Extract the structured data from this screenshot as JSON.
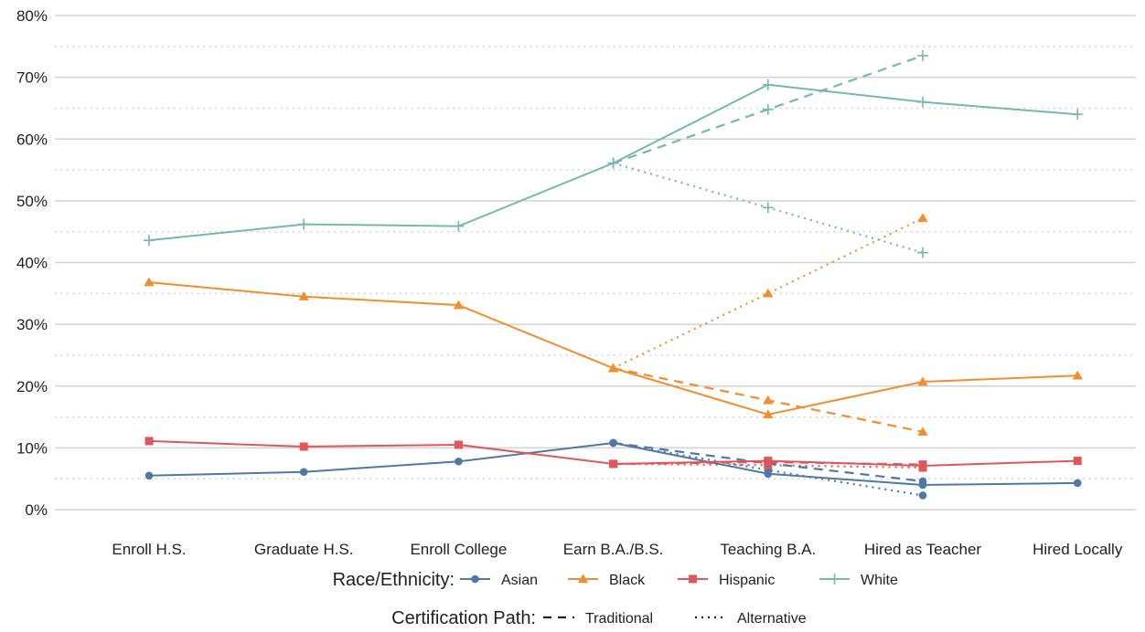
{
  "chart_data": {
    "type": "line",
    "categories": [
      "Enroll H.S.",
      "Graduate H.S.",
      "Enroll College",
      "Earn B.A./B.S.",
      "Teaching B.A.",
      "Hired as Teacher",
      "Hired Locally"
    ],
    "y_ticks": [
      "0%",
      "10%",
      "20%",
      "30%",
      "40%",
      "50%",
      "60%",
      "70%",
      "80%"
    ],
    "ylim": [
      0,
      80
    ],
    "grid": "major solid, minor dotted",
    "legend_placement": "bottom",
    "legend": {
      "race_title": "Race/Ethnicity:",
      "race_items": [
        {
          "label": "Asian",
          "color": "#4e79a7",
          "marker": "circle"
        },
        {
          "label": "Black",
          "color": "#f28e2b",
          "marker": "triangle"
        },
        {
          "label": "Hispanic",
          "color": "#e15759",
          "marker": "square"
        },
        {
          "label": "White",
          "color": "#76b7b2",
          "marker": "plus"
        }
      ],
      "path_title": "Certification Path:",
      "path_items": [
        {
          "label": "Traditional",
          "dash": "dashed"
        },
        {
          "label": "Alternative",
          "dash": "dotted"
        }
      ]
    },
    "series": [
      {
        "name": "Asian",
        "path": "Overall",
        "values": [
          5.5,
          6.1,
          7.8,
          10.8,
          5.8,
          4.0,
          4.3
        ]
      },
      {
        "name": "Black",
        "path": "Overall",
        "values": [
          36.8,
          34.5,
          33.1,
          22.9,
          15.4,
          20.7,
          21.7
        ]
      },
      {
        "name": "Hispanic",
        "path": "Overall",
        "values": [
          11.1,
          10.2,
          10.5,
          7.4,
          7.9,
          7.1,
          7.9
        ]
      },
      {
        "name": "White",
        "path": "Overall",
        "values": [
          43.6,
          46.2,
          45.9,
          56.1,
          68.8,
          66.0,
          64.0
        ]
      },
      {
        "name": "Asian",
        "path": "Traditional",
        "values": [
          null,
          null,
          null,
          10.8,
          7.5,
          4.6,
          null
        ]
      },
      {
        "name": "Black",
        "path": "Traditional",
        "values": [
          null,
          null,
          null,
          22.9,
          17.7,
          12.6,
          null
        ]
      },
      {
        "name": "Hispanic",
        "path": "Traditional",
        "values": [
          null,
          null,
          null,
          7.4,
          7.7,
          7.3,
          null
        ]
      },
      {
        "name": "White",
        "path": "Traditional",
        "values": [
          null,
          null,
          null,
          56.1,
          64.8,
          73.5,
          null
        ]
      },
      {
        "name": "Asian",
        "path": "Alternative",
        "values": [
          null,
          null,
          null,
          10.8,
          6.4,
          2.3,
          null
        ]
      },
      {
        "name": "Black",
        "path": "Alternative",
        "values": [
          null,
          null,
          null,
          22.9,
          35.0,
          47.2,
          null
        ]
      },
      {
        "name": "Hispanic",
        "path": "Alternative",
        "values": [
          null,
          null,
          null,
          7.4,
          7.2,
          6.8,
          null
        ]
      },
      {
        "name": "White",
        "path": "Alternative",
        "values": [
          null,
          null,
          null,
          56.1,
          48.9,
          41.6,
          null
        ]
      }
    ]
  }
}
